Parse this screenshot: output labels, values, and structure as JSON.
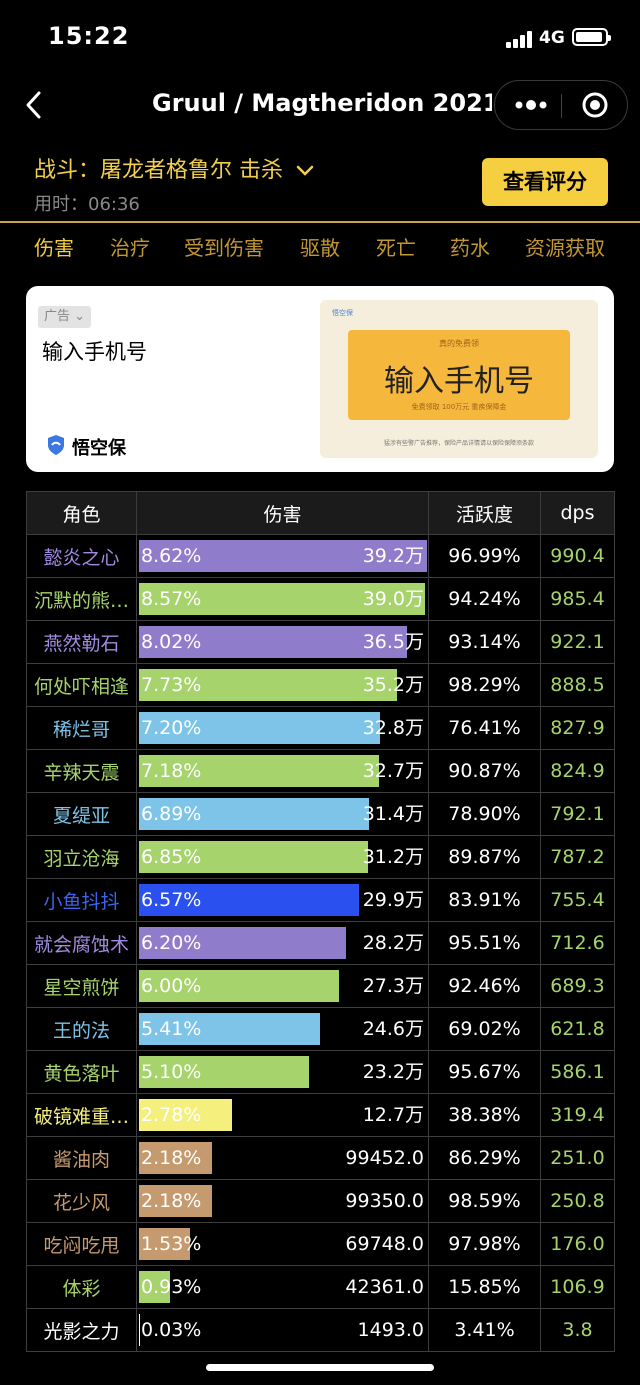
{
  "status_bar": {
    "time": "15:22",
    "network": "4G"
  },
  "nav": {
    "title": "Gruul / Magtheridon 2021..."
  },
  "battle": {
    "label": "战斗：屠龙者格鲁尔 击杀",
    "duration": "用时：06:36",
    "rating_button": "查看评分"
  },
  "tabs": [
    "伤害",
    "治疗",
    "受到伤害",
    "驱散",
    "死亡",
    "药水",
    "资源获取"
  ],
  "ad": {
    "tag": "广告",
    "headline": "输入手机号",
    "brand": "悟空保",
    "banner_logo": "悟空保",
    "banner_top": "真的免费领",
    "banner_main": "输入手机号",
    "banner_sub": "免费领取  100万元 重疾保障金",
    "banner_foot": "猛涉有些警广告推荐，保险产品详情请以保险保障须条款"
  },
  "table": {
    "headers": [
      "角色",
      "伤害",
      "活跃度",
      "dps"
    ],
    "rows": [
      {
        "name": "懿炎之心",
        "name_color": "#a18ae0",
        "bar_color": "#8f7dcc",
        "share": 8.62,
        "pct": "8.62%",
        "amount": "39.2万",
        "active": "96.99%",
        "dps": "990.4"
      },
      {
        "name": "沉默的熊…",
        "name_color": "#a6d36b",
        "bar_color": "#a6d36b",
        "share": 8.57,
        "pct": "8.57%",
        "amount": "39.0万",
        "active": "94.24%",
        "dps": "985.4"
      },
      {
        "name": "燕然勒石",
        "name_color": "#a18ae0",
        "bar_color": "#8f7dcc",
        "share": 8.02,
        "pct": "8.02%",
        "amount": "36.5万",
        "active": "93.14%",
        "dps": "922.1"
      },
      {
        "name": "何处吓相逢",
        "name_color": "#a6d36b",
        "bar_color": "#a6d36b",
        "share": 7.73,
        "pct": "7.73%",
        "amount": "35.2万",
        "active": "98.29%",
        "dps": "888.5"
      },
      {
        "name": "稀烂哥",
        "name_color": "#7dc4e8",
        "bar_color": "#7dc4e8",
        "share": 7.2,
        "pct": "7.20%",
        "amount": "32.8万",
        "active": "76.41%",
        "dps": "827.9"
      },
      {
        "name": "辛辣天震",
        "name_color": "#a6d36b",
        "bar_color": "#a6d36b",
        "share": 7.18,
        "pct": "7.18%",
        "amount": "32.7万",
        "active": "90.87%",
        "dps": "824.9"
      },
      {
        "name": "夏缇亚",
        "name_color": "#7dc4e8",
        "bar_color": "#7dc4e8",
        "share": 6.89,
        "pct": "6.89%",
        "amount": "31.4万",
        "active": "78.90%",
        "dps": "792.1"
      },
      {
        "name": "羽立沧海",
        "name_color": "#a6d36b",
        "bar_color": "#a6d36b",
        "share": 6.85,
        "pct": "6.85%",
        "amount": "31.2万",
        "active": "89.87%",
        "dps": "787.2"
      },
      {
        "name": "小鱼抖抖",
        "name_color": "#3b63f0",
        "bar_color": "#2b50f0",
        "share": 6.57,
        "pct": "6.57%",
        "amount": "29.9万",
        "active": "83.91%",
        "dps": "755.4"
      },
      {
        "name": "就会腐蚀术",
        "name_color": "#a18ae0",
        "bar_color": "#8f7dcc",
        "share": 6.2,
        "pct": "6.20%",
        "amount": "28.2万",
        "active": "95.51%",
        "dps": "712.6"
      },
      {
        "name": "星空煎饼",
        "name_color": "#a6d36b",
        "bar_color": "#a6d36b",
        "share": 6.0,
        "pct": "6.00%",
        "amount": "27.3万",
        "active": "92.46%",
        "dps": "689.3"
      },
      {
        "name": "王的法",
        "name_color": "#7dc4e8",
        "bar_color": "#7dc4e8",
        "share": 5.41,
        "pct": "5.41%",
        "amount": "24.6万",
        "active": "69.02%",
        "dps": "621.8"
      },
      {
        "name": "黄色落叶",
        "name_color": "#a6d36b",
        "bar_color": "#a6d36b",
        "share": 5.1,
        "pct": "5.10%",
        "amount": "23.2万",
        "active": "95.67%",
        "dps": "586.1"
      },
      {
        "name": "破镜难重…",
        "name_color": "#f5ef7e",
        "bar_color": "#f5ef7e",
        "share": 2.78,
        "pct": "2.78%",
        "amount": "12.7万",
        "active": "38.38%",
        "dps": "319.4"
      },
      {
        "name": "酱油肉",
        "name_color": "#c59a6e",
        "bar_color": "#c59a6e",
        "share": 2.18,
        "pct": "2.18%",
        "amount": "99452.0",
        "active": "86.29%",
        "dps": "251.0"
      },
      {
        "name": "花少风",
        "name_color": "#c59a6e",
        "bar_color": "#c59a6e",
        "share": 2.18,
        "pct": "2.18%",
        "amount": "99350.0",
        "active": "98.59%",
        "dps": "250.8"
      },
      {
        "name": "吃闷吃甩",
        "name_color": "#c59a6e",
        "bar_color": "#c59a6e",
        "share": 1.53,
        "pct": "1.53%",
        "amount": "69748.0",
        "active": "97.98%",
        "dps": "176.0"
      },
      {
        "name": "体彩",
        "name_color": "#a6d36b",
        "bar_color": "#a6d36b",
        "share": 0.93,
        "pct": "0.93%",
        "amount": "42361.0",
        "active": "15.85%",
        "dps": "106.9"
      },
      {
        "name": "光影之力",
        "name_color": "#ffffff",
        "bar_color": "#ffffff",
        "share": 0.03,
        "pct": "0.03%",
        "amount": "1493.0",
        "active": "3.41%",
        "dps": "3.8"
      }
    ]
  }
}
